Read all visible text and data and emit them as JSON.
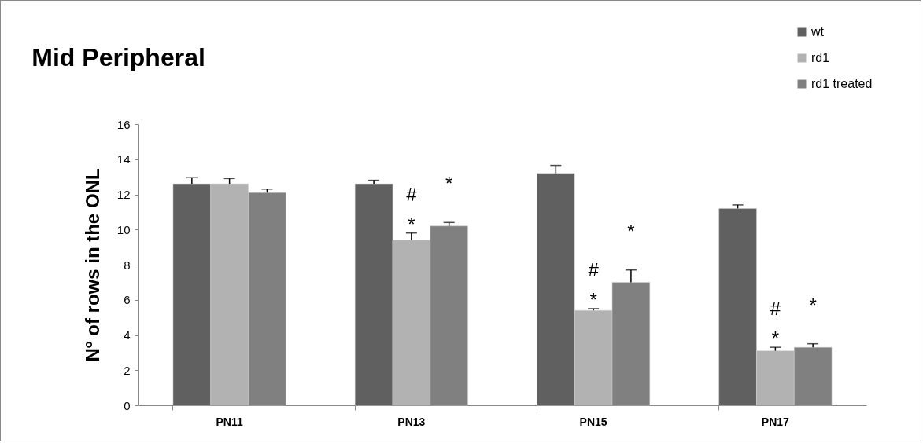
{
  "chart_data": {
    "type": "bar",
    "title": "Mid Peripheral",
    "ylabel": "Nº of rows in the ONL",
    "categories": [
      "PN11",
      "PN13",
      "PN15",
      "PN17"
    ],
    "series": [
      {
        "name": "wt",
        "color": "#606060",
        "values": [
          12.6,
          12.6,
          13.2,
          11.2
        ],
        "errors": [
          0.35,
          0.2,
          0.45,
          0.2
        ]
      },
      {
        "name": "rd1",
        "color": "#b2b2b2",
        "values": [
          12.6,
          9.4,
          5.4,
          3.1
        ],
        "errors": [
          0.3,
          0.4,
          0.1,
          0.2
        ],
        "value_labels": [
          null,
          "#\n*",
          "#\n*",
          "#\n*"
        ]
      },
      {
        "name": "rd1 treated",
        "color": "#808080",
        "values": [
          12.1,
          10.2,
          7.0,
          3.3
        ],
        "errors": [
          0.2,
          0.2,
          0.7,
          0.2
        ],
        "value_labels": [
          null,
          "*",
          "*",
          "*"
        ]
      }
    ],
    "ylim": [
      0,
      16
    ],
    "yticks": [
      0,
      2,
      4,
      6,
      8,
      10,
      12,
      14,
      16
    ],
    "grid": false,
    "legend": "top right"
  }
}
